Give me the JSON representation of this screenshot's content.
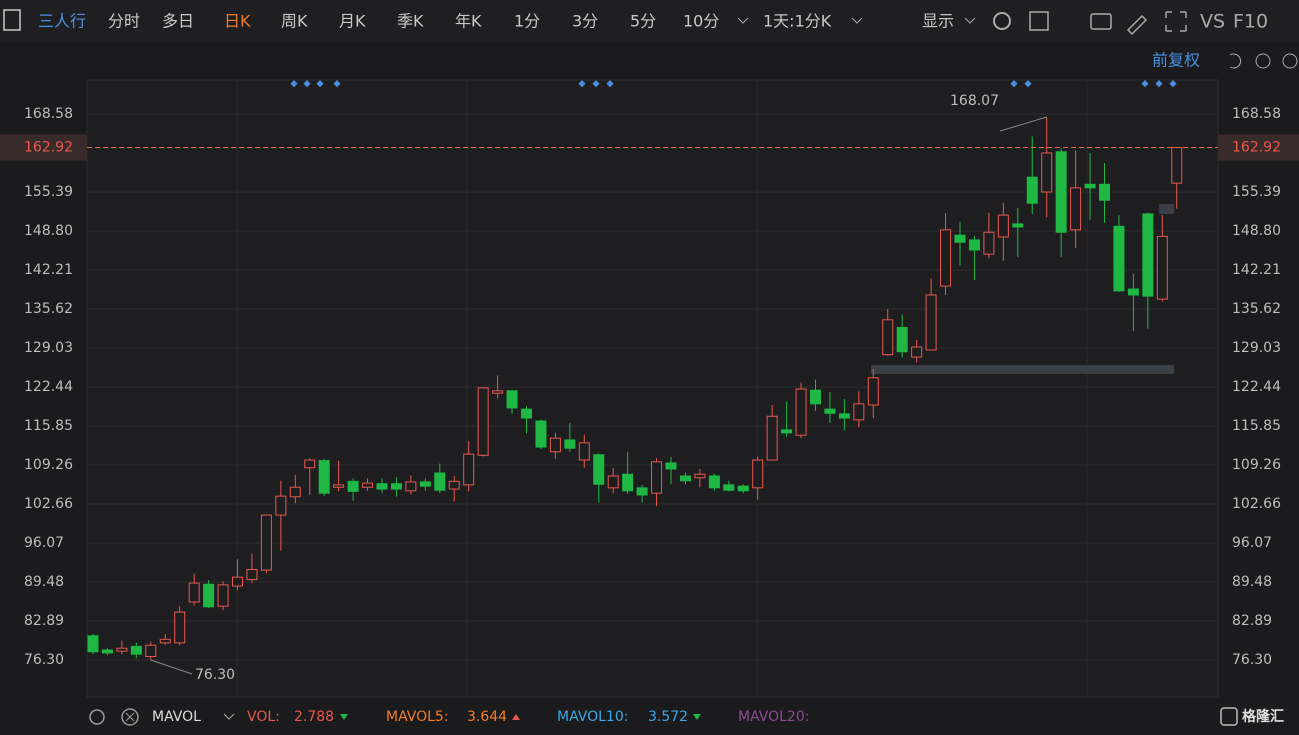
{
  "toolbar": {
    "items": [
      "三人行",
      "分时",
      "多日",
      "日K",
      "周K",
      "月K",
      "季K",
      "年K",
      "1分",
      "3分",
      "5分",
      "10分",
      "1天:1分K",
      "显示",
      "VS",
      "F10"
    ],
    "adjust": "前复权"
  },
  "chart_data": {
    "type": "candlestick",
    "up_color": "#e8584f",
    "down_color": "#1fb845",
    "ylim": [
      70.05,
      174.33
    ],
    "yticks": [
      {
        "value": 76.3,
        "label": "76.30"
      },
      82.89,
      89.48,
      96.07,
      102.66,
      109.26,
      115.85,
      122.44,
      129.03,
      135.62,
      142.21,
      {
        "value": 148.8,
        "label": "148.80"
      },
      155.39,
      168.58
    ],
    "grid": true,
    "last_price": 162.92,
    "open": [
      80.4,
      78.0,
      77.8,
      78.6,
      76.9,
      79.2,
      79.2,
      86.1,
      89.1,
      85.4,
      88.8,
      89.9,
      91.5,
      100.8,
      103.9,
      108.8,
      110.0,
      105.5,
      106.5,
      105.5,
      106.1,
      106.1,
      104.9,
      106.4,
      107.9,
      105.2,
      105.9,
      110.9,
      121.4,
      121.8,
      118.7,
      116.7,
      111.5,
      113.5,
      110.1,
      111.0,
      105.4,
      107.7,
      105.4,
      104.5,
      109.6,
      107.4,
      107.1,
      107.4,
      105.9,
      105.7,
      105.4,
      110.1,
      115.2,
      114.3,
      121.9,
      118.7,
      117.9,
      116.9,
      119.4,
      127.9,
      132.5,
      127.5,
      128.7,
      139.5,
      148.1,
      147.3,
      144.9,
      147.8,
      150.0,
      157.9,
      155.4,
      162.2,
      149.0,
      156.7,
      156.7,
      149.6,
      139.0,
      151.7,
      137.3,
      156.9
    ],
    "high": [
      80.7,
      78.3,
      79.6,
      79.2,
      79.4,
      80.7,
      85.4,
      90.9,
      89.8,
      89.6,
      93.3,
      94.3,
      100.9,
      106.6,
      107.6,
      110.4,
      110.3,
      110.0,
      107.0,
      107.0,
      107.0,
      107.2,
      107.5,
      107.0,
      109.5,
      107.4,
      113.3,
      122.4,
      124.4,
      121.9,
      119.2,
      116.9,
      114.7,
      116.4,
      114.4,
      111.2,
      108.8,
      111.5,
      105.9,
      110.4,
      110.6,
      108.0,
      108.6,
      107.8,
      106.6,
      106.0,
      110.7,
      119.4,
      120.0,
      123.2,
      123.7,
      121.6,
      120.4,
      121.7,
      125.5,
      135.6,
      134.7,
      130.4,
      140.8,
      151.8,
      150.4,
      148.0,
      151.9,
      153.6,
      152.7,
      164.8,
      168.07,
      162.8,
      162.4,
      162.0,
      160.3,
      151.5,
      141.6,
      151.9,
      151.5,
      163.0
    ],
    "low": [
      77.3,
      77.1,
      77.3,
      76.6,
      76.3,
      78.9,
      78.8,
      85.5,
      85.1,
      84.7,
      88.1,
      89.3,
      91.0,
      94.8,
      102.8,
      104.2,
      104.0,
      104.8,
      103.2,
      104.9,
      104.5,
      103.9,
      104.3,
      104.9,
      104.5,
      103.1,
      104.8,
      110.7,
      120.5,
      117.9,
      114.6,
      111.9,
      110.3,
      111.5,
      108.8,
      102.9,
      104.5,
      104.4,
      102.9,
      102.3,
      106.0,
      106.0,
      105.5,
      104.9,
      104.8,
      104.5,
      103.4,
      110.0,
      114.0,
      113.8,
      118.4,
      116.4,
      115.1,
      115.6,
      117.2,
      127.7,
      127.4,
      126.6,
      128.6,
      138.0,
      143.0,
      140.5,
      144.2,
      143.8,
      144.4,
      151.7,
      151.1,
      144.4,
      145.9,
      150.7,
      150.2,
      138.5,
      131.9,
      132.3,
      136.9,
      152.6
    ],
    "close": [
      77.7,
      77.5,
      78.3,
      77.3,
      78.8,
      79.8,
      84.4,
      89.3,
      85.3,
      89.0,
      90.3,
      91.6,
      100.8,
      104.0,
      105.5,
      110.1,
      104.5,
      105.9,
      104.8,
      106.2,
      105.2,
      105.2,
      106.4,
      105.7,
      105.0,
      106.5,
      111.1,
      122.3,
      121.8,
      118.9,
      117.2,
      112.3,
      113.8,
      112.1,
      113.0,
      106.0,
      107.4,
      104.9,
      104.2,
      109.8,
      108.6,
      106.6,
      107.7,
      105.4,
      105.0,
      104.9,
      110.1,
      117.5,
      114.7,
      122.1,
      119.6,
      118.0,
      117.2,
      119.6,
      124.0,
      133.8,
      128.4,
      129.2,
      138.0,
      149.0,
      146.9,
      145.6,
      148.6,
      151.5,
      149.5,
      153.5,
      162.0,
      148.6,
      156.1,
      156.1,
      154.0,
      138.7,
      138.0,
      137.8,
      147.9,
      162.92
    ],
    "annotations": {
      "high": 168.07,
      "low": 76.3,
      "high_label": "168.07",
      "low_label": "76.30"
    }
  },
  "footer": {
    "indicator": "MAVOL",
    "vol_label": "VOL:",
    "vol": "2.788",
    "mavol5_label": "MAVOL5:",
    "mavol5": "3.644",
    "mavol10_label": "MAVOL10:",
    "mavol10": "3.572",
    "mavol20_label": "MAVOL20:",
    "logo": "格隆汇"
  }
}
